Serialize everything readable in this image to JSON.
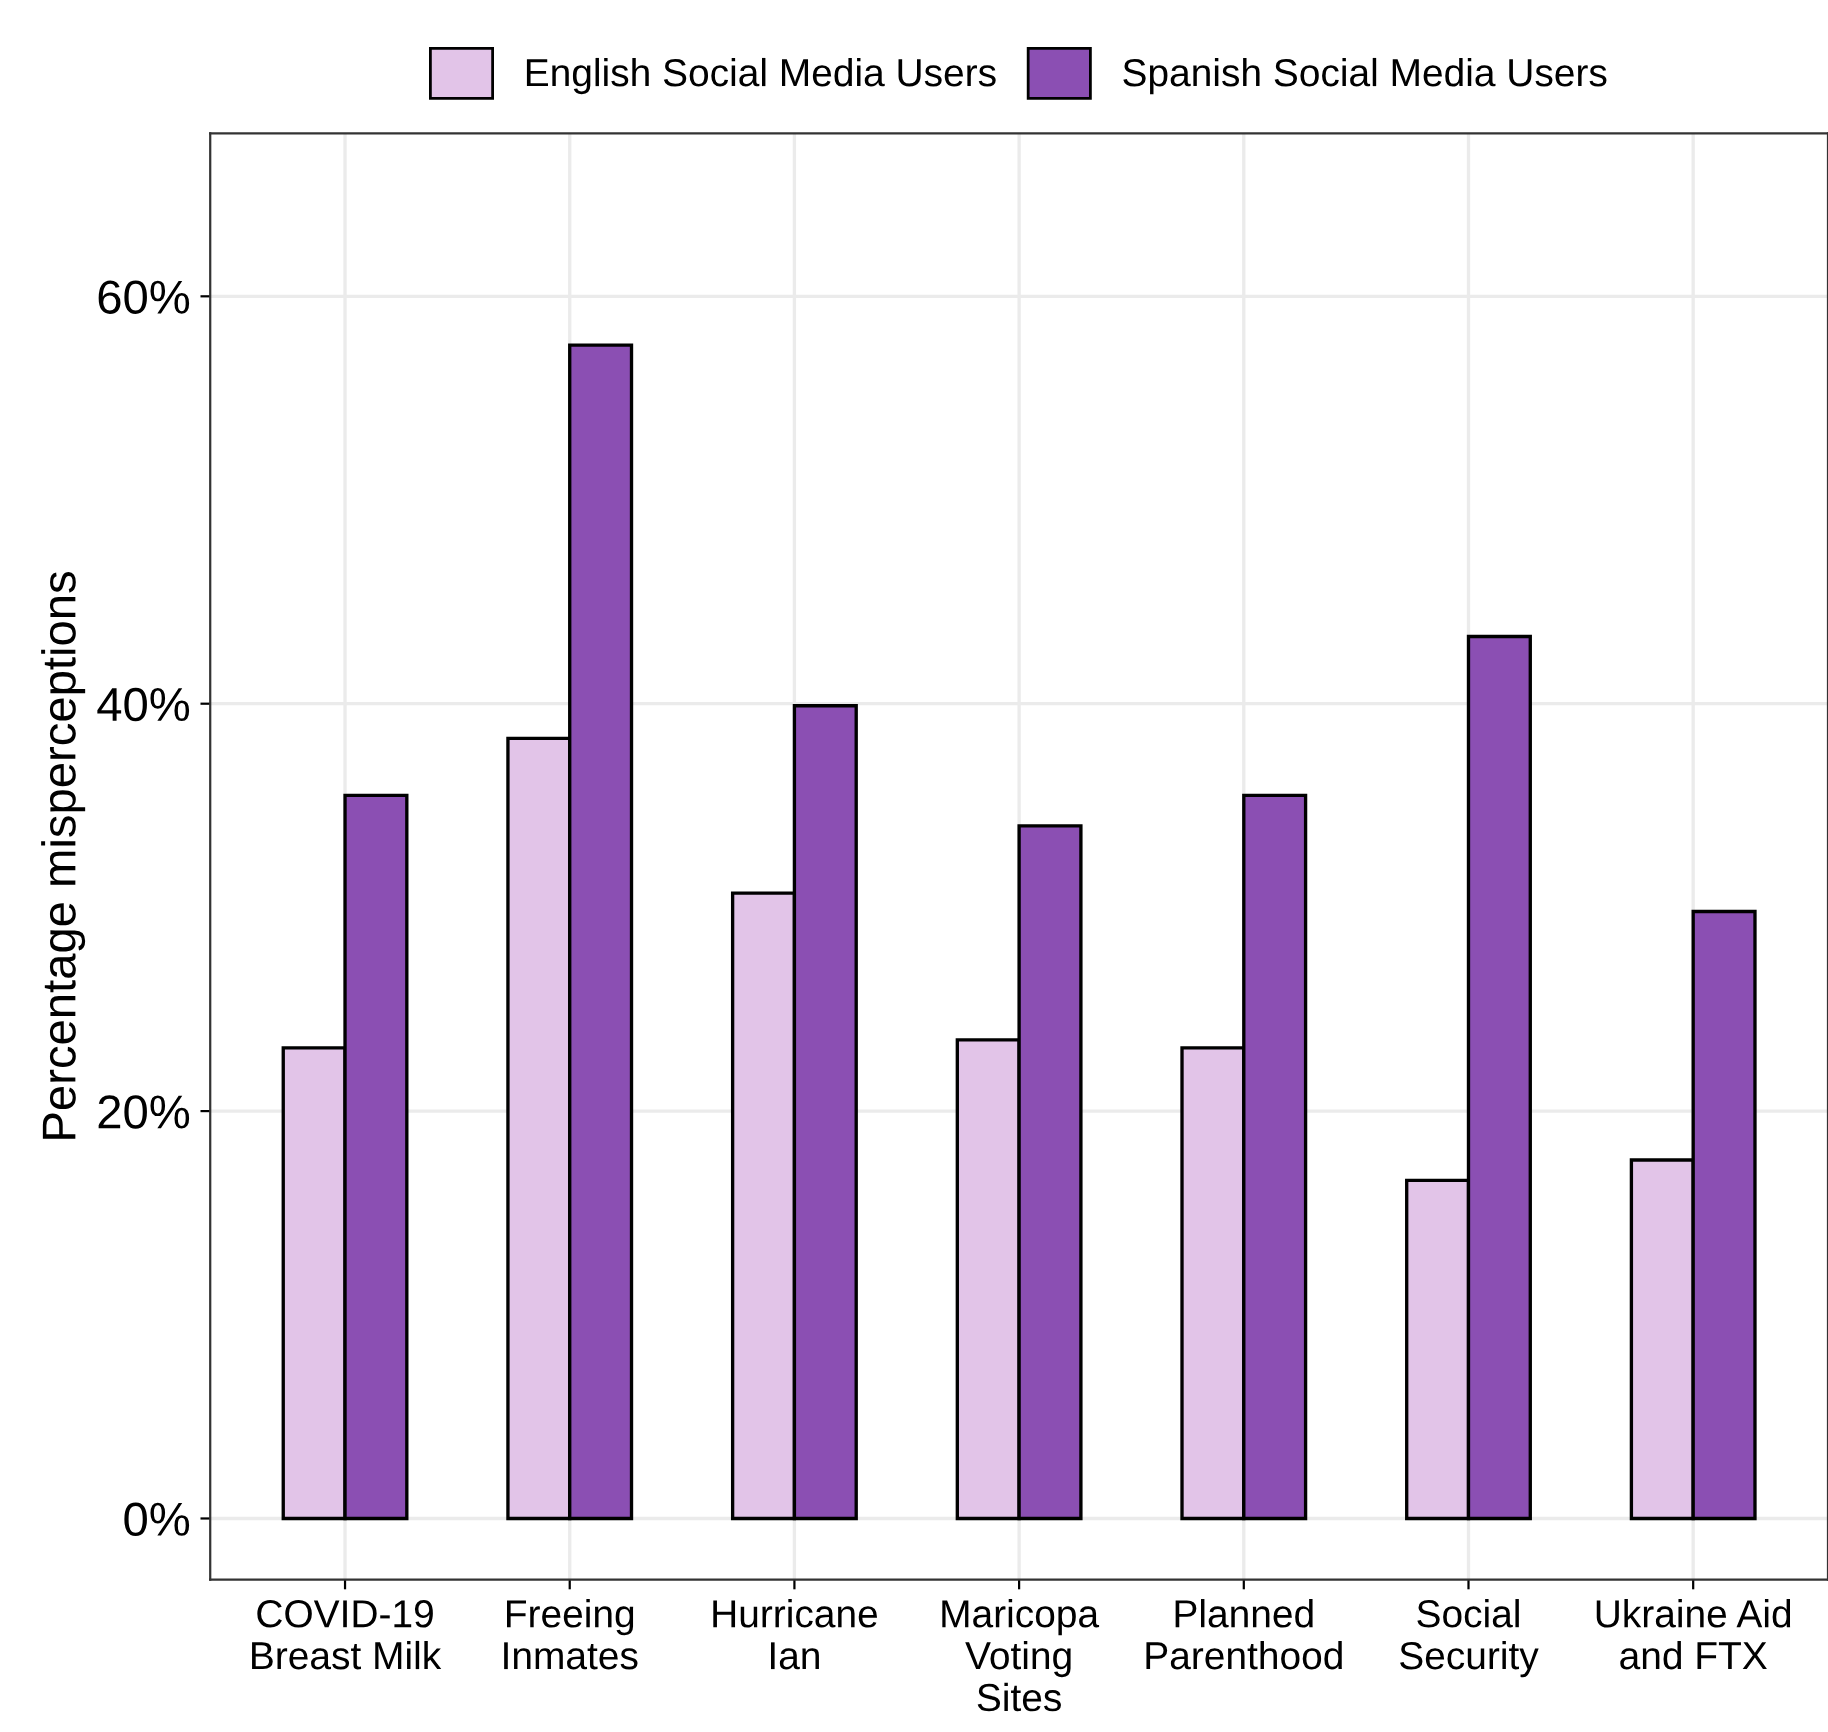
{
  "chart_data": {
    "type": "bar",
    "ylabel": "Percentage misperceptions",
    "categories": [
      "COVID-19\nBreast Milk",
      "Freeing\nInmates",
      "Hurricane\nIan",
      "Maricopa\nVoting\nSites",
      "Planned\nParenthood",
      "Social\nSecurity",
      "Ukraine Aid\nand FTX"
    ],
    "series": [
      {
        "name": "English Social Media Users",
        "color": "#e2c4e8",
        "values": [
          23.1,
          38.3,
          30.7,
          23.5,
          23.1,
          16.6,
          17.6
        ]
      },
      {
        "name": "Spanish Social Media Users",
        "color": "#8b4fb3",
        "values": [
          35.5,
          57.6,
          39.9,
          34.0,
          35.5,
          43.3,
          29.8
        ]
      }
    ],
    "ylim": [
      -3,
      68
    ],
    "yticks": [
      {
        "value": 0,
        "label": "0%"
      },
      {
        "value": 20,
        "label": "20%"
      },
      {
        "value": 40,
        "label": "40%"
      },
      {
        "value": 60,
        "label": "60%"
      }
    ],
    "grid": true,
    "legend": "top"
  }
}
